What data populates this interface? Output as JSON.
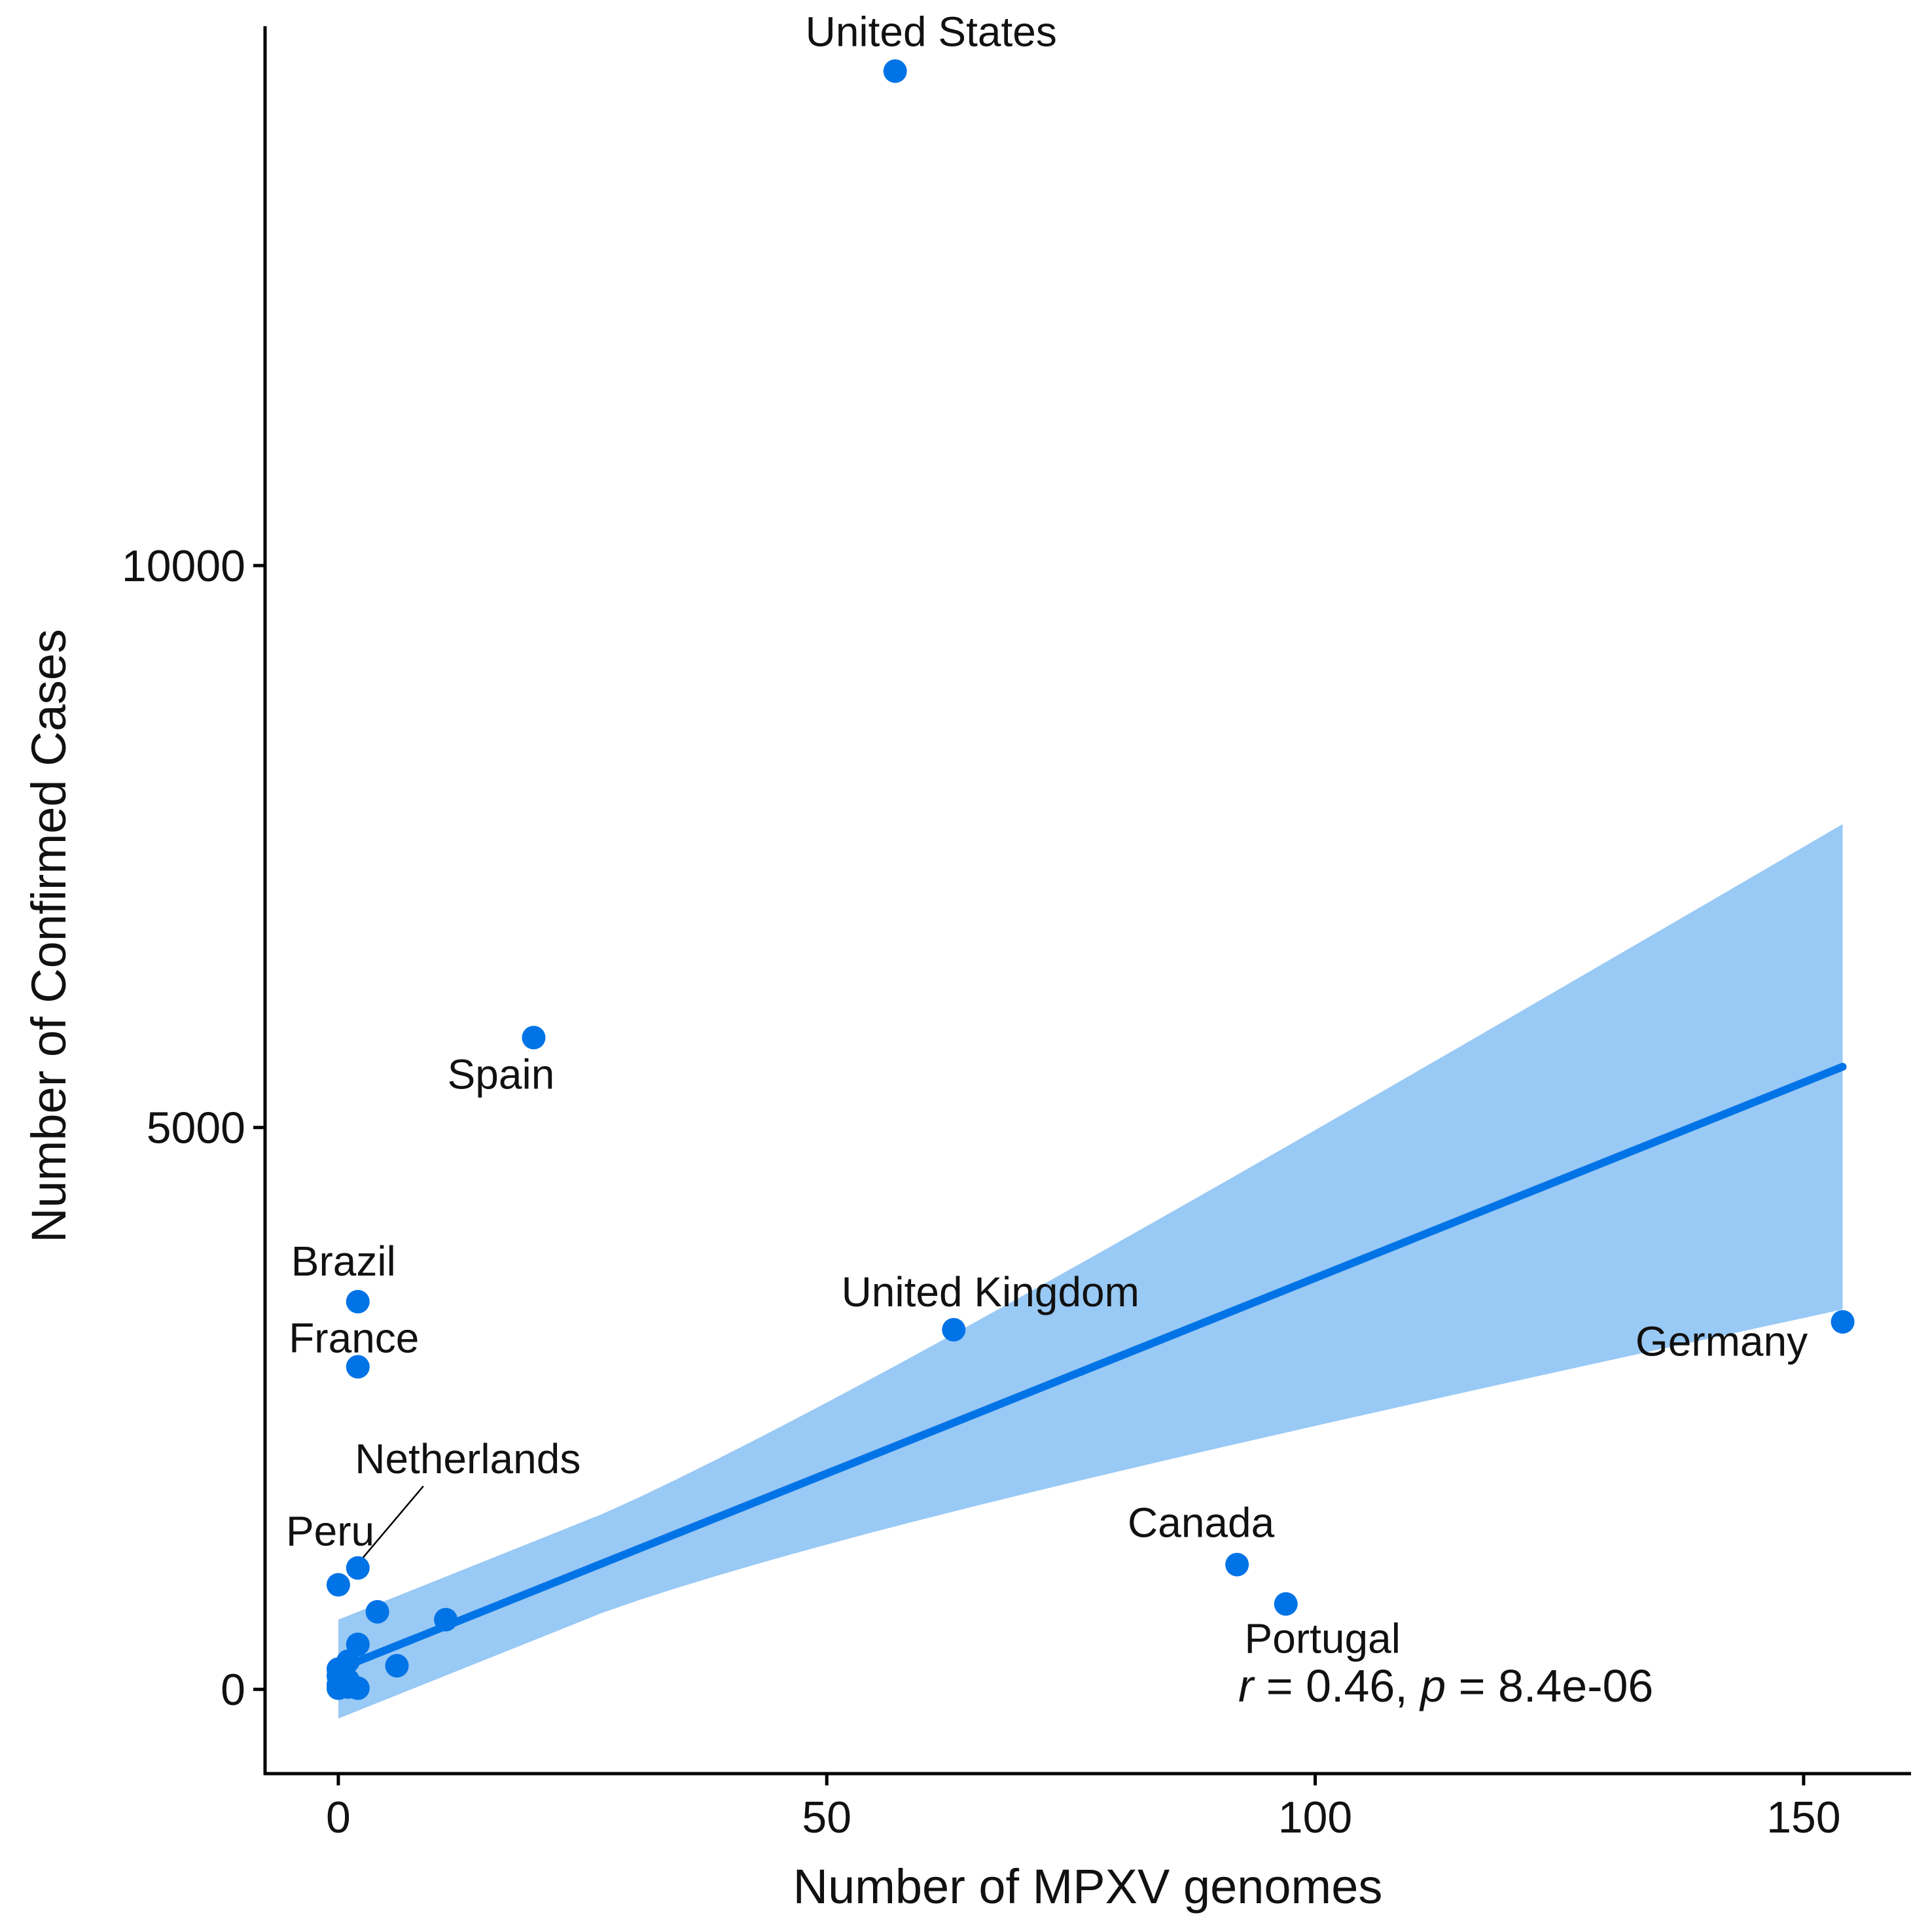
{
  "chart_data": {
    "type": "scatter",
    "title": "",
    "xlabel": "Number of MPXV genomes",
    "ylabel": "Number of Confirmed Cases",
    "xlim": [
      -7.5,
      161
    ],
    "ylim": [
      -750,
      14800
    ],
    "x_ticks": [
      0,
      50,
      100,
      150
    ],
    "y_ticks": [
      0,
      5000,
      10000
    ],
    "grid": false,
    "legend": "none",
    "colors": {
      "points": "#0073e6",
      "line": "#0073e6",
      "band": "#99c9f5",
      "axis": "#000000"
    },
    "points": [
      {
        "x": 57,
        "y": 14400,
        "label": "United States"
      },
      {
        "x": 20,
        "y": 5800,
        "label": "Spain"
      },
      {
        "x": 2,
        "y": 3450,
        "label": "Brazil"
      },
      {
        "x": 2,
        "y": 2870,
        "label": "France"
      },
      {
        "x": 63,
        "y": 3200,
        "label": "United Kingdom"
      },
      {
        "x": 154,
        "y": 3270,
        "label": "Germany"
      },
      {
        "x": 2,
        "y": 1080,
        "label": "Netherlands"
      },
      {
        "x": 0,
        "y": 930,
        "label": "Peru"
      },
      {
        "x": 92,
        "y": 1110,
        "label": "Canada"
      },
      {
        "x": 97,
        "y": 760,
        "label": "Portugal"
      },
      {
        "x": 4,
        "y": 690,
        "label": ""
      },
      {
        "x": 11,
        "y": 620,
        "label": ""
      },
      {
        "x": 2,
        "y": 400,
        "label": ""
      },
      {
        "x": 6,
        "y": 210,
        "label": ""
      },
      {
        "x": 1,
        "y": 250,
        "label": ""
      },
      {
        "x": 0,
        "y": 180,
        "label": ""
      },
      {
        "x": 0,
        "y": 120,
        "label": ""
      },
      {
        "x": 1,
        "y": 80,
        "label": ""
      },
      {
        "x": 0,
        "y": 40,
        "label": ""
      },
      {
        "x": 0,
        "y": 10,
        "label": ""
      },
      {
        "x": 1,
        "y": 20,
        "label": ""
      },
      {
        "x": 2,
        "y": 10,
        "label": ""
      }
    ],
    "regression": {
      "x": [
        0,
        154
      ],
      "y": [
        180,
        5540
      ],
      "ci_upper": [
        620,
        7700
      ],
      "ci_lower": [
        -100,
        3400
      ]
    },
    "annotation": {
      "r_symbol": "r",
      "r_text": " = 0.46, ",
      "p_symbol": "p",
      "p_text": " = 8.4e-06"
    }
  }
}
